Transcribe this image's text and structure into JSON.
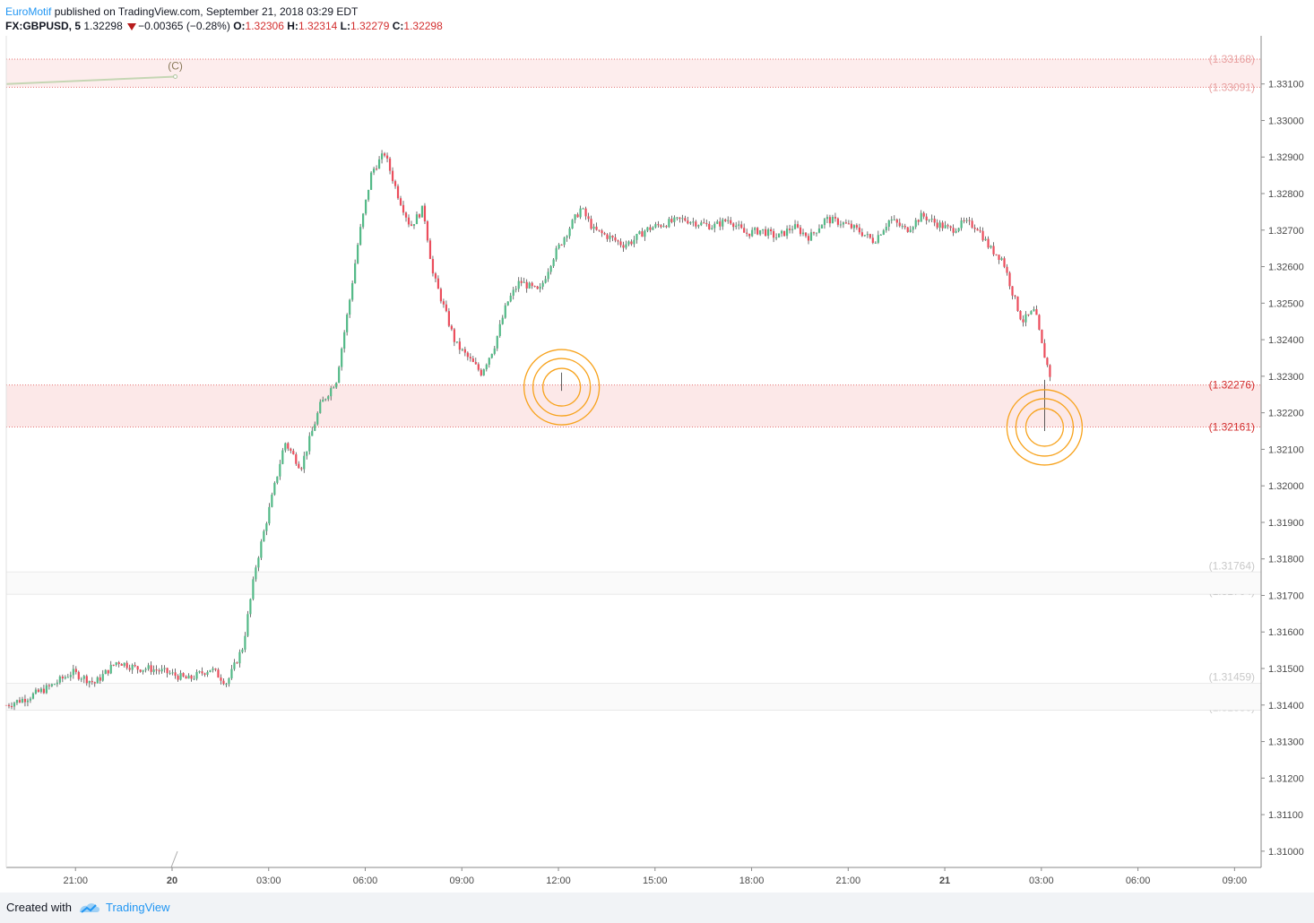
{
  "header": {
    "author": "EuroMotif",
    "published_text": "published on TradingView.com, September 21, 2018 03:29 EDT",
    "symbol": "FX:GBPUSD, 5",
    "last_price": "1.32298",
    "change": "−0.00365 (−0.28%)",
    "o_label": "O:",
    "o_value": "1.32306",
    "h_label": "H:",
    "h_value": "1.32314",
    "l_label": "L:",
    "l_value": "1.32279",
    "c_label": "C:",
    "c_value": "1.32298"
  },
  "footer": {
    "created_with": "Created with",
    "brand": "TradingView"
  },
  "chart_data": {
    "type": "candlestick",
    "symbol": "FX:GBPUSD",
    "interval": "5",
    "ylim": [
      1.3096,
      1.3319
    ],
    "y_ticks": [
      "1.31000",
      "1.31100",
      "1.31200",
      "1.31300",
      "1.31400",
      "1.31500",
      "1.31600",
      "1.31700",
      "1.31800",
      "1.31900",
      "1.32000",
      "1.32100",
      "1.32200",
      "1.32300",
      "1.32400",
      "1.32500",
      "1.32600",
      "1.32700",
      "1.32800",
      "1.32900",
      "1.33000",
      "1.33100"
    ],
    "x_ticks": [
      {
        "label": "21:00",
        "bold": false,
        "hour": 3
      },
      {
        "label": "20",
        "bold": true,
        "hour": 6
      },
      {
        "label": "03:00",
        "bold": false,
        "hour": 9
      },
      {
        "label": "06:00",
        "bold": false,
        "hour": 12
      },
      {
        "label": "09:00",
        "bold": false,
        "hour": 15
      },
      {
        "label": "12:00",
        "bold": false,
        "hour": 18
      },
      {
        "label": "15:00",
        "bold": false,
        "hour": 21
      },
      {
        "label": "18:00",
        "bold": false,
        "hour": 24
      },
      {
        "label": "21:00",
        "bold": false,
        "hour": 27
      },
      {
        "label": "21",
        "bold": true,
        "hour": 30
      },
      {
        "label": "03:00",
        "bold": false,
        "hour": 33
      },
      {
        "label": "06:00",
        "bold": false,
        "hour": 36
      },
      {
        "label": "09:00",
        "bold": false,
        "hour": 39
      }
    ],
    "x_range_hours": [
      0.85,
      39.8
    ],
    "path_hours": [
      0.85,
      1.5,
      2.2,
      2.9,
      3.6,
      4.3,
      4.9,
      5.3,
      5.8,
      6.5,
      7.2,
      7.7,
      8.2,
      8.6,
      9.0,
      9.5,
      10.0,
      10.6,
      11.1,
      11.5,
      11.8,
      12.2,
      12.6,
      13.0,
      13.4,
      13.8,
      14.1,
      14.4,
      14.8,
      15.2,
      15.6,
      16.0,
      16.4,
      16.8,
      17.4,
      17.8,
      18.3,
      18.7,
      19.1,
      19.6,
      20.0,
      20.3,
      20.7,
      21.0,
      21.4,
      21.9,
      22.3,
      22.8,
      23.3,
      23.8,
      24.3,
      24.8,
      25.3,
      25.8,
      26.3,
      26.8,
      27.3,
      27.8,
      28.3,
      28.8,
      29.3,
      29.7,
      30.2,
      30.6,
      31.0,
      31.4,
      31.8,
      32.1,
      32.4,
      32.8,
      33.0,
      33.3
    ],
    "path_prices": [
      1.314,
      1.3142,
      1.3145,
      1.3149,
      1.3146,
      1.3152,
      1.315,
      1.315,
      1.3149,
      1.3147,
      1.315,
      1.3146,
      1.3156,
      1.3178,
      1.3193,
      1.3212,
      1.3205,
      1.3222,
      1.3229,
      1.325,
      1.3268,
      1.3286,
      1.3291,
      1.328,
      1.3271,
      1.3276,
      1.3258,
      1.325,
      1.3239,
      1.3235,
      1.3231,
      1.3238,
      1.325,
      1.3256,
      1.3253,
      1.3262,
      1.327,
      1.3276,
      1.327,
      1.3268,
      1.3266,
      1.3267,
      1.327,
      1.3271,
      1.3272,
      1.3273,
      1.3272,
      1.3271,
      1.3273,
      1.3269,
      1.327,
      1.3268,
      1.3271,
      1.3268,
      1.3273,
      1.3272,
      1.327,
      1.3267,
      1.3273,
      1.327,
      1.3274,
      1.3272,
      1.327,
      1.3272,
      1.3271,
      1.3265,
      1.3262,
      1.3253,
      1.3245,
      1.3248,
      1.3239,
      1.3229
    ],
    "colors": {
      "up": "#53b987",
      "down": "#eb4d5c",
      "zone": "#fce8e8",
      "zone_line": "#e57373",
      "label_red": "#d32f2f",
      "label_faded": "#e8a0a0",
      "label_grey": "#c8c8c8",
      "circle": "#f7a21b",
      "axis_line": "#8a8a8a"
    },
    "zones": [
      {
        "top": 1.33168,
        "bottom": 1.33091,
        "top_label": "(1.33168)",
        "bottom_label": "(1.33091)",
        "style": "faded"
      },
      {
        "top": 1.32276,
        "bottom": 1.32161,
        "top_label": "(1.32276)",
        "bottom_label": "(1.32161)",
        "style": "strong"
      }
    ],
    "grey_levels": [
      {
        "price": 1.31764,
        "label": "(1.31764)"
      },
      {
        "price": 1.31704,
        "label": "(1.31704)"
      },
      {
        "price": 1.31459,
        "label": "(1.31459)"
      },
      {
        "price": 1.31386,
        "label": "(1.31386)"
      }
    ],
    "wave_label": "(C)",
    "wave_line": {
      "x1_hour": 0.85,
      "y1": 1.331,
      "x2_hour": 6.1,
      "y2": 1.3312
    },
    "circles": [
      {
        "hour": 18.1,
        "price": 1.3227
      },
      {
        "hour": 33.1,
        "price": 1.3216
      }
    ]
  }
}
